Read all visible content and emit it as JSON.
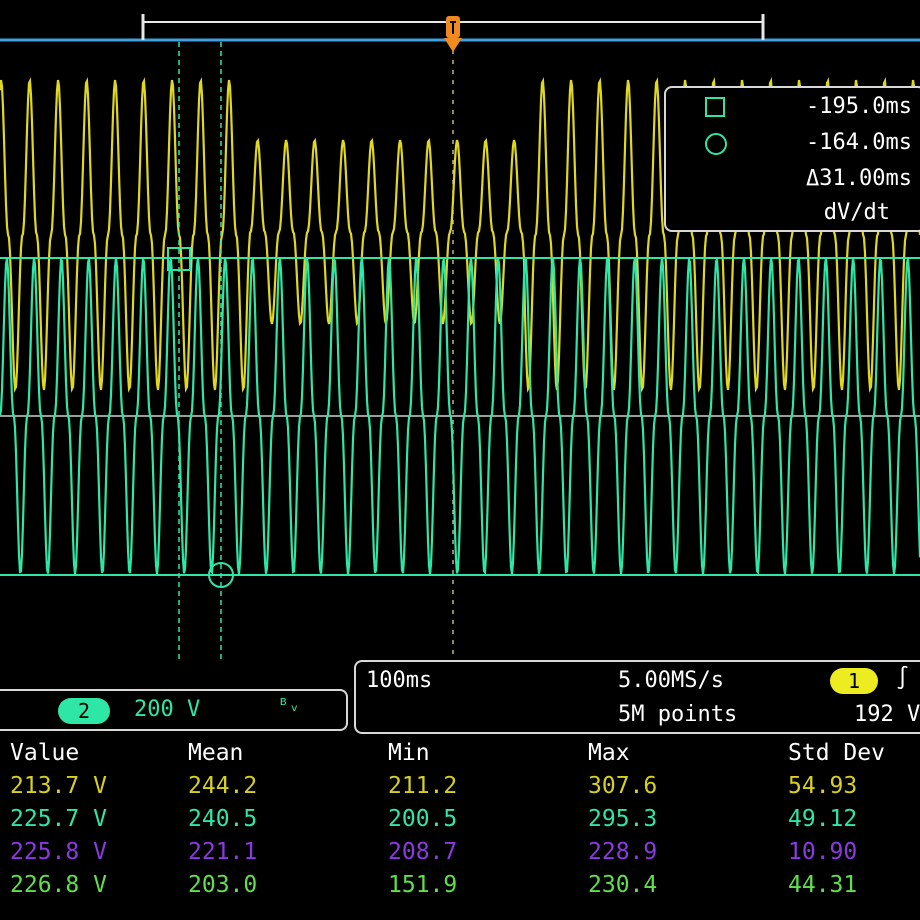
{
  "cursor_readout": {
    "square_value": "-195.0ms",
    "circle_value": "-164.0ms",
    "delta_value": "Δ31.00ms",
    "rate_label": "dV/dt"
  },
  "horizontal": {
    "scale": "100ms",
    "sample_rate": "5.00MS/s",
    "record_length": "5M points",
    "trigger_channel": "1",
    "trigger_level": "192 V",
    "trigger_slope_symbol": "∫"
  },
  "channel2": {
    "number": "2",
    "scale": "200 V",
    "bandwidth_symbol": "ᴮᵥ"
  },
  "measurements": {
    "headers": [
      "Value",
      "Mean",
      "Min",
      "Max",
      "Std Dev"
    ],
    "rows": [
      {
        "color": "#d8d020",
        "cells": [
          "213.7 V",
          "244.2",
          "211.2",
          "307.6",
          "54.93"
        ]
      },
      {
        "color": "#2ee6a6",
        "cells": [
          "225.7 V",
          "240.5",
          "200.5",
          "295.3",
          "49.12"
        ]
      },
      {
        "color": "#8a3ae0",
        "cells": [
          "225.8 V",
          "221.1",
          "208.7",
          "228.9",
          "10.90"
        ]
      },
      {
        "color": "#5fe04a",
        "cells": [
          "226.8 V",
          "203.0",
          "151.9",
          "230.4",
          "44.31"
        ]
      }
    ]
  },
  "colors": {
    "ch1": "#e0d820",
    "ch2": "#2ee6a6",
    "cursor": "#2ee6a6",
    "record_bar": "#3fa0e0",
    "trigger_marker": "#f08a20"
  }
}
